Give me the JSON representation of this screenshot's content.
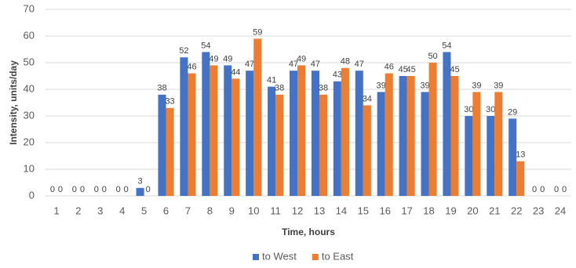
{
  "chart_data": {
    "type": "bar",
    "categories": [
      "1",
      "2",
      "3",
      "4",
      "5",
      "6",
      "7",
      "8",
      "9",
      "10",
      "11",
      "12",
      "13",
      "14",
      "15",
      "16",
      "17",
      "18",
      "19",
      "20",
      "21",
      "22",
      "23",
      "24"
    ],
    "series": [
      {
        "name": "to West",
        "color": "#4472c4",
        "values": [
          0,
          0,
          0,
          0,
          3,
          38,
          52,
          54,
          49,
          47,
          41,
          47,
          47,
          43,
          47,
          39,
          45,
          39,
          54,
          30,
          30,
          29,
          0,
          0
        ]
      },
      {
        "name": "to East",
        "color": "#ed7d31",
        "values": [
          0,
          0,
          0,
          0,
          0,
          33,
          46,
          49,
          44,
          59,
          38,
          49,
          38,
          48,
          34,
          46,
          45,
          50,
          45,
          39,
          39,
          13,
          0,
          0
        ]
      }
    ],
    "x_label": "Time, hours",
    "y_label": "Intensity, units/day",
    "ylim": [
      0,
      70
    ],
    "yticks": [
      0,
      10,
      20,
      30,
      40,
      50,
      60,
      70
    ],
    "grid": true,
    "legend": "bottom"
  }
}
